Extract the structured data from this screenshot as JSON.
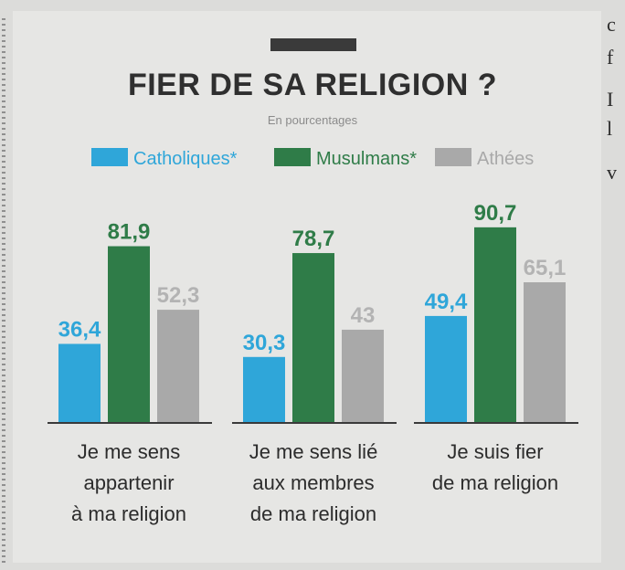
{
  "colors": {
    "catholiques": "#2fa6d9",
    "musulmans": "#2f7c48",
    "athees": "#a9a9a9",
    "title_bar": "#3a3a3a"
  },
  "chart_data": {
    "type": "bar",
    "title": "FIER DE SA RELIGION ?",
    "subtitle": "En pourcentages",
    "categories": [
      [
        "Je me sens",
        "appartenir",
        "à ma religion"
      ],
      [
        "Je me sens lié",
        "aux membres",
        "de ma religion"
      ],
      [
        "Je suis fier",
        "de ma religion"
      ]
    ],
    "series": [
      {
        "name": "Catholiques*",
        "values": [
          36.4,
          30.3,
          49.4
        ],
        "labels": [
          "36,4",
          "30,3",
          "49,4"
        ]
      },
      {
        "name": "Musulmans*",
        "values": [
          81.9,
          78.7,
          90.7
        ],
        "labels": [
          "81,9",
          "78,7",
          "90,7"
        ]
      },
      {
        "name": "Athées",
        "values": [
          52.3,
          43,
          65.1
        ],
        "labels": [
          "52,3",
          "43",
          "65,1"
        ]
      }
    ],
    "ylim": [
      0,
      100
    ],
    "grid": false,
    "legend": "top"
  },
  "page_edge": {
    "glyphs": [
      "c",
      "f",
      "I",
      "l",
      "v"
    ]
  }
}
